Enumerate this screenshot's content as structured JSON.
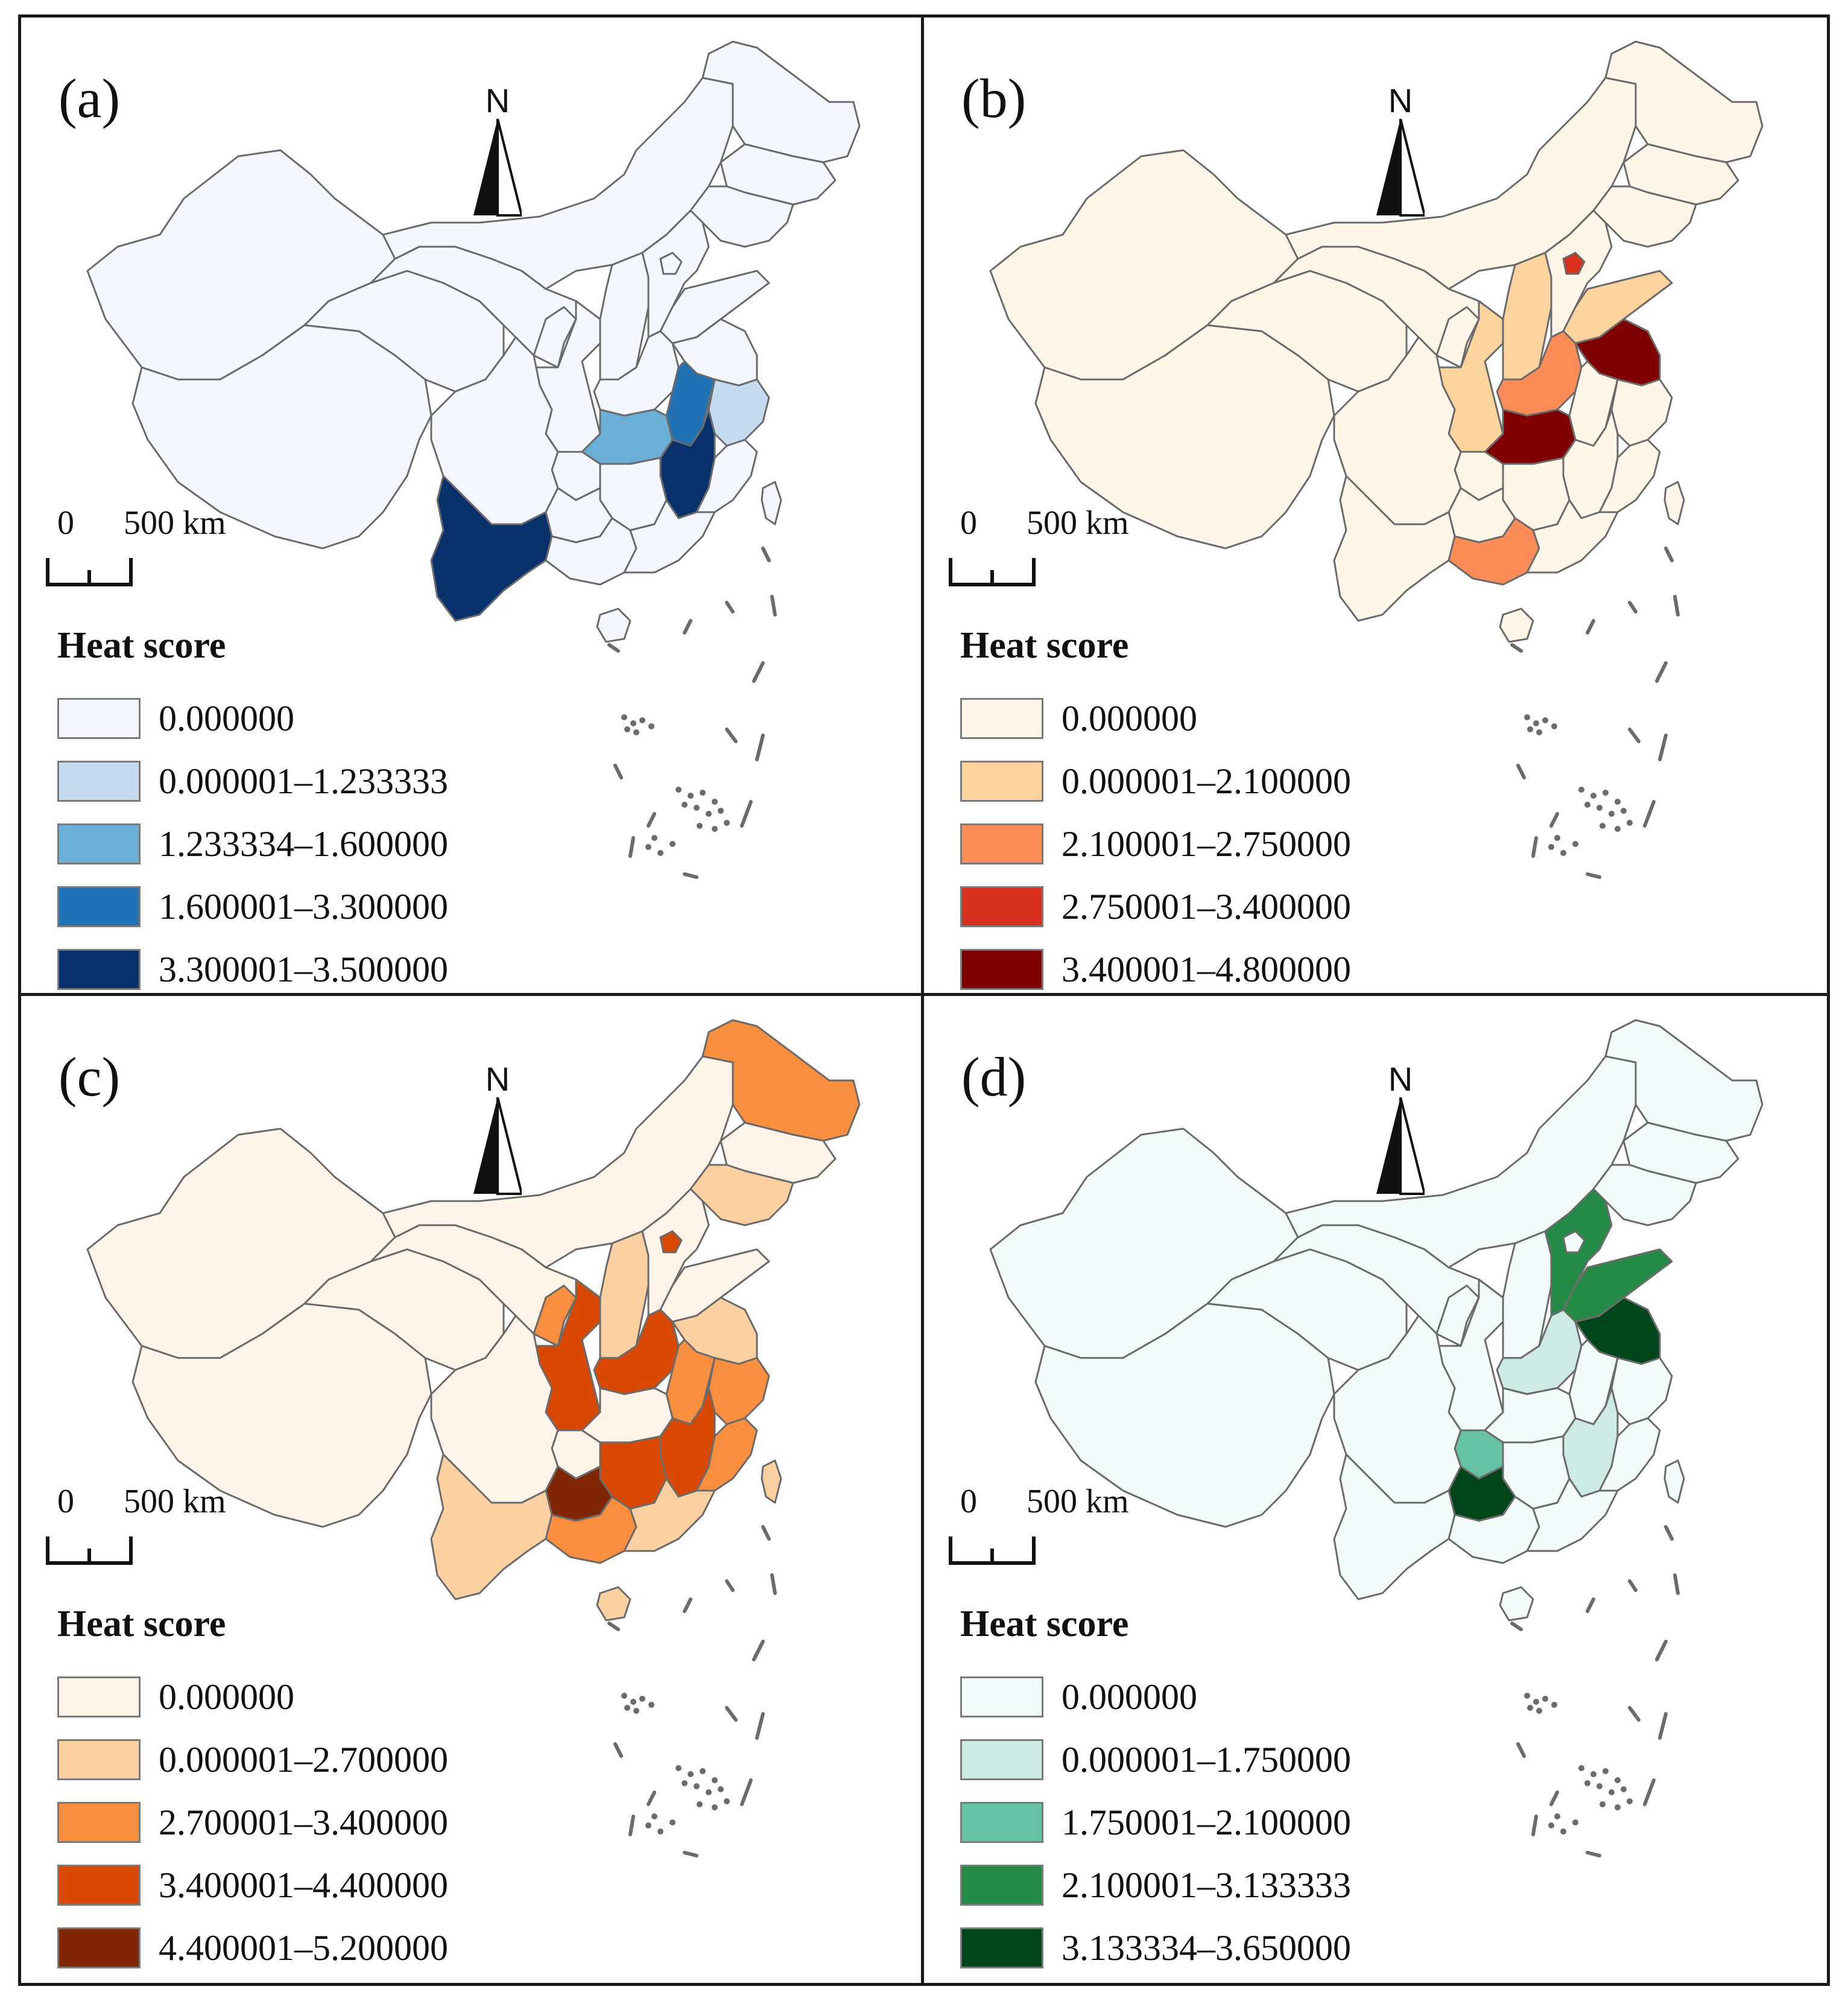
{
  "figure": {
    "legend_title": "Heat score",
    "north_label": "N",
    "scale": {
      "start": "0",
      "end": "500 km"
    },
    "outline_color": "#6b6b6b"
  },
  "panels": [
    {
      "label": "(a)",
      "colormap": "Blues",
      "classes": [
        {
          "range": "0.000000",
          "color": "#f4f8fe"
        },
        {
          "range": "0.000001–1.233333",
          "color": "#c6dbef"
        },
        {
          "range": "1.233334–1.600000",
          "color": "#6baed6"
        },
        {
          "range": "1.600001–3.300000",
          "color": "#2171b5"
        },
        {
          "range": "3.300001–3.500000",
          "color": "#08306b"
        }
      ],
      "highlights": [
        {
          "region": "Yunnan",
          "class": 4
        },
        {
          "region": "Jiangxi",
          "class": 4
        },
        {
          "region": "Anhui",
          "class": 3
        },
        {
          "region": "Hubei",
          "class": 2
        },
        {
          "region": "Zhejiang",
          "class": 1
        }
      ]
    },
    {
      "label": "(b)",
      "colormap": "Oranges-Reds",
      "classes": [
        {
          "range": "0.000000",
          "color": "#fff6ea"
        },
        {
          "range": "0.000001–2.100000",
          "color": "#fdd49e"
        },
        {
          "range": "2.100001–2.750000",
          "color": "#fc8d59"
        },
        {
          "range": "2.750001–3.400000",
          "color": "#d7301f"
        },
        {
          "range": "3.400001–4.800000",
          "color": "#7f0000"
        }
      ],
      "highlights": [
        {
          "region": "Hubei",
          "class": 4
        },
        {
          "region": "Jiangsu",
          "class": 4
        },
        {
          "region": "Beijing",
          "class": 3
        },
        {
          "region": "Henan",
          "class": 2
        },
        {
          "region": "Guangxi",
          "class": 2
        },
        {
          "region": "Shaanxi",
          "class": 1
        },
        {
          "region": "Shanxi",
          "class": 1
        },
        {
          "region": "Shandong",
          "class": 1
        }
      ]
    },
    {
      "label": "(c)",
      "colormap": "Oranges",
      "classes": [
        {
          "range": "0.000000",
          "color": "#fef4ea"
        },
        {
          "range": "0.000001–2.700000",
          "color": "#fdd0a2"
        },
        {
          "range": "2.700001–3.400000",
          "color": "#f98e3e"
        },
        {
          "range": "3.400001–4.400000",
          "color": "#d94801"
        },
        {
          "range": "4.400001–5.200000",
          "color": "#7f2704"
        }
      ],
      "highlights": [
        {
          "region": "Guizhou",
          "class": 4
        },
        {
          "region": "Shaanxi",
          "class": 3
        },
        {
          "region": "Henan",
          "class": 3
        },
        {
          "region": "Hunan",
          "class": 3
        },
        {
          "region": "Jiangxi",
          "class": 3
        },
        {
          "region": "Beijing",
          "class": 3
        },
        {
          "region": "Heilongjiang",
          "class": 2
        },
        {
          "region": "Guangxi",
          "class": 2
        },
        {
          "region": "Fujian",
          "class": 2
        },
        {
          "region": "Zhejiang",
          "class": 2
        },
        {
          "region": "Anhui",
          "class": 2
        },
        {
          "region": "Ningxia",
          "class": 2
        },
        {
          "region": "Yunnan",
          "class": 1
        },
        {
          "region": "Guangdong",
          "class": 1
        },
        {
          "region": "Liaoning",
          "class": 1
        },
        {
          "region": "Shanxi",
          "class": 1
        },
        {
          "region": "Jiangsu",
          "class": 1
        },
        {
          "region": "Hainan",
          "class": 1
        },
        {
          "region": "Taiwan",
          "class": 1
        }
      ]
    },
    {
      "label": "(d)",
      "colormap": "Greens",
      "classes": [
        {
          "range": "0.000000",
          "color": "#f2fafa"
        },
        {
          "range": "0.000001–1.750000",
          "color": "#cdeae5"
        },
        {
          "range": "1.750001–2.100000",
          "color": "#66c2a4"
        },
        {
          "range": "2.100001–3.133333",
          "color": "#238b45"
        },
        {
          "range": "3.133334–3.650000",
          "color": "#00441b"
        }
      ],
      "highlights": [
        {
          "region": "Guizhou",
          "class": 4
        },
        {
          "region": "Jiangsu",
          "class": 4
        },
        {
          "region": "Hebei",
          "class": 3
        },
        {
          "region": "Shandong",
          "class": 3
        },
        {
          "region": "Chongqing",
          "class": 2
        },
        {
          "region": "Henan",
          "class": 1
        },
        {
          "region": "Jiangxi",
          "class": 1
        }
      ]
    }
  ]
}
